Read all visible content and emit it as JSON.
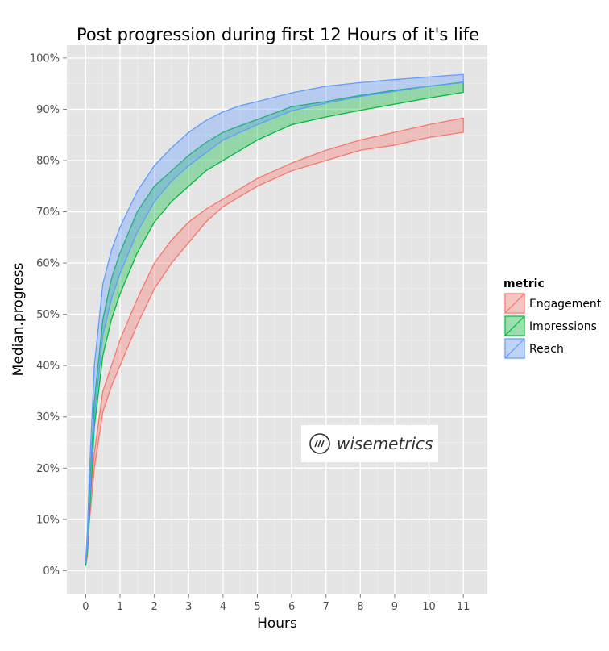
{
  "chart_data": {
    "type": "area",
    "title": "Post progression during first 12 Hours of it's life",
    "xlabel": "Hours",
    "ylabel": "Median.progress",
    "xlim": [
      -0.55,
      11.7
    ],
    "ylim": [
      -0.045,
      1.025
    ],
    "x_ticks": [
      0,
      1,
      2,
      3,
      4,
      5,
      6,
      7,
      8,
      9,
      10,
      11
    ],
    "y_ticks": [
      0,
      0.1,
      0.2,
      0.3,
      0.4,
      0.5,
      0.6,
      0.7,
      0.8,
      0.9,
      1.0
    ],
    "y_tick_labels": [
      "0%",
      "10%",
      "20%",
      "30%",
      "40%",
      "50%",
      "60%",
      "70%",
      "80%",
      "90%",
      "100%"
    ],
    "grid": true,
    "legend_title": "metric",
    "legend_position": "right",
    "x": [
      0,
      0.05,
      0.1,
      0.25,
      0.5,
      0.75,
      1,
      1.5,
      2,
      2.5,
      3,
      3.5,
      4,
      4.5,
      5,
      6,
      7,
      8,
      9,
      10,
      11
    ],
    "series": [
      {
        "name": "Engagement",
        "color": "#F8766D",
        "lower": [
          0.01,
          0.03,
          0.09,
          0.2,
          0.31,
          0.36,
          0.4,
          0.48,
          0.55,
          0.6,
          0.64,
          0.68,
          0.71,
          0.73,
          0.75,
          0.78,
          0.8,
          0.82,
          0.83,
          0.845,
          0.855
        ],
        "upper": [
          0.015,
          0.05,
          0.12,
          0.23,
          0.35,
          0.4,
          0.45,
          0.53,
          0.6,
          0.645,
          0.68,
          0.705,
          0.725,
          0.745,
          0.765,
          0.795,
          0.82,
          0.84,
          0.855,
          0.87,
          0.883
        ]
      },
      {
        "name": "Impressions",
        "color": "#00BA38",
        "lower": [
          0.01,
          0.04,
          0.1,
          0.28,
          0.42,
          0.49,
          0.54,
          0.62,
          0.68,
          0.72,
          0.75,
          0.78,
          0.8,
          0.82,
          0.84,
          0.87,
          0.885,
          0.898,
          0.91,
          0.922,
          0.933
        ],
        "upper": [
          0.015,
          0.06,
          0.14,
          0.33,
          0.49,
          0.57,
          0.62,
          0.7,
          0.75,
          0.78,
          0.81,
          0.835,
          0.855,
          0.868,
          0.88,
          0.905,
          0.915,
          0.927,
          0.937,
          0.945,
          0.953
        ]
      },
      {
        "name": "Reach",
        "color": "#619CFF",
        "lower": [
          0.015,
          0.05,
          0.12,
          0.3,
          0.46,
          0.53,
          0.58,
          0.66,
          0.72,
          0.76,
          0.79,
          0.815,
          0.84,
          0.855,
          0.87,
          0.897,
          0.912,
          0.925,
          0.935,
          0.945,
          0.952
        ],
        "upper": [
          0.02,
          0.08,
          0.18,
          0.4,
          0.56,
          0.625,
          0.67,
          0.74,
          0.79,
          0.825,
          0.855,
          0.878,
          0.895,
          0.907,
          0.915,
          0.932,
          0.945,
          0.952,
          0.958,
          0.963,
          0.968
        ]
      }
    ]
  },
  "watermark": {
    "text": "wisemetrics",
    "icon": "wisemetrics-logo-icon"
  }
}
